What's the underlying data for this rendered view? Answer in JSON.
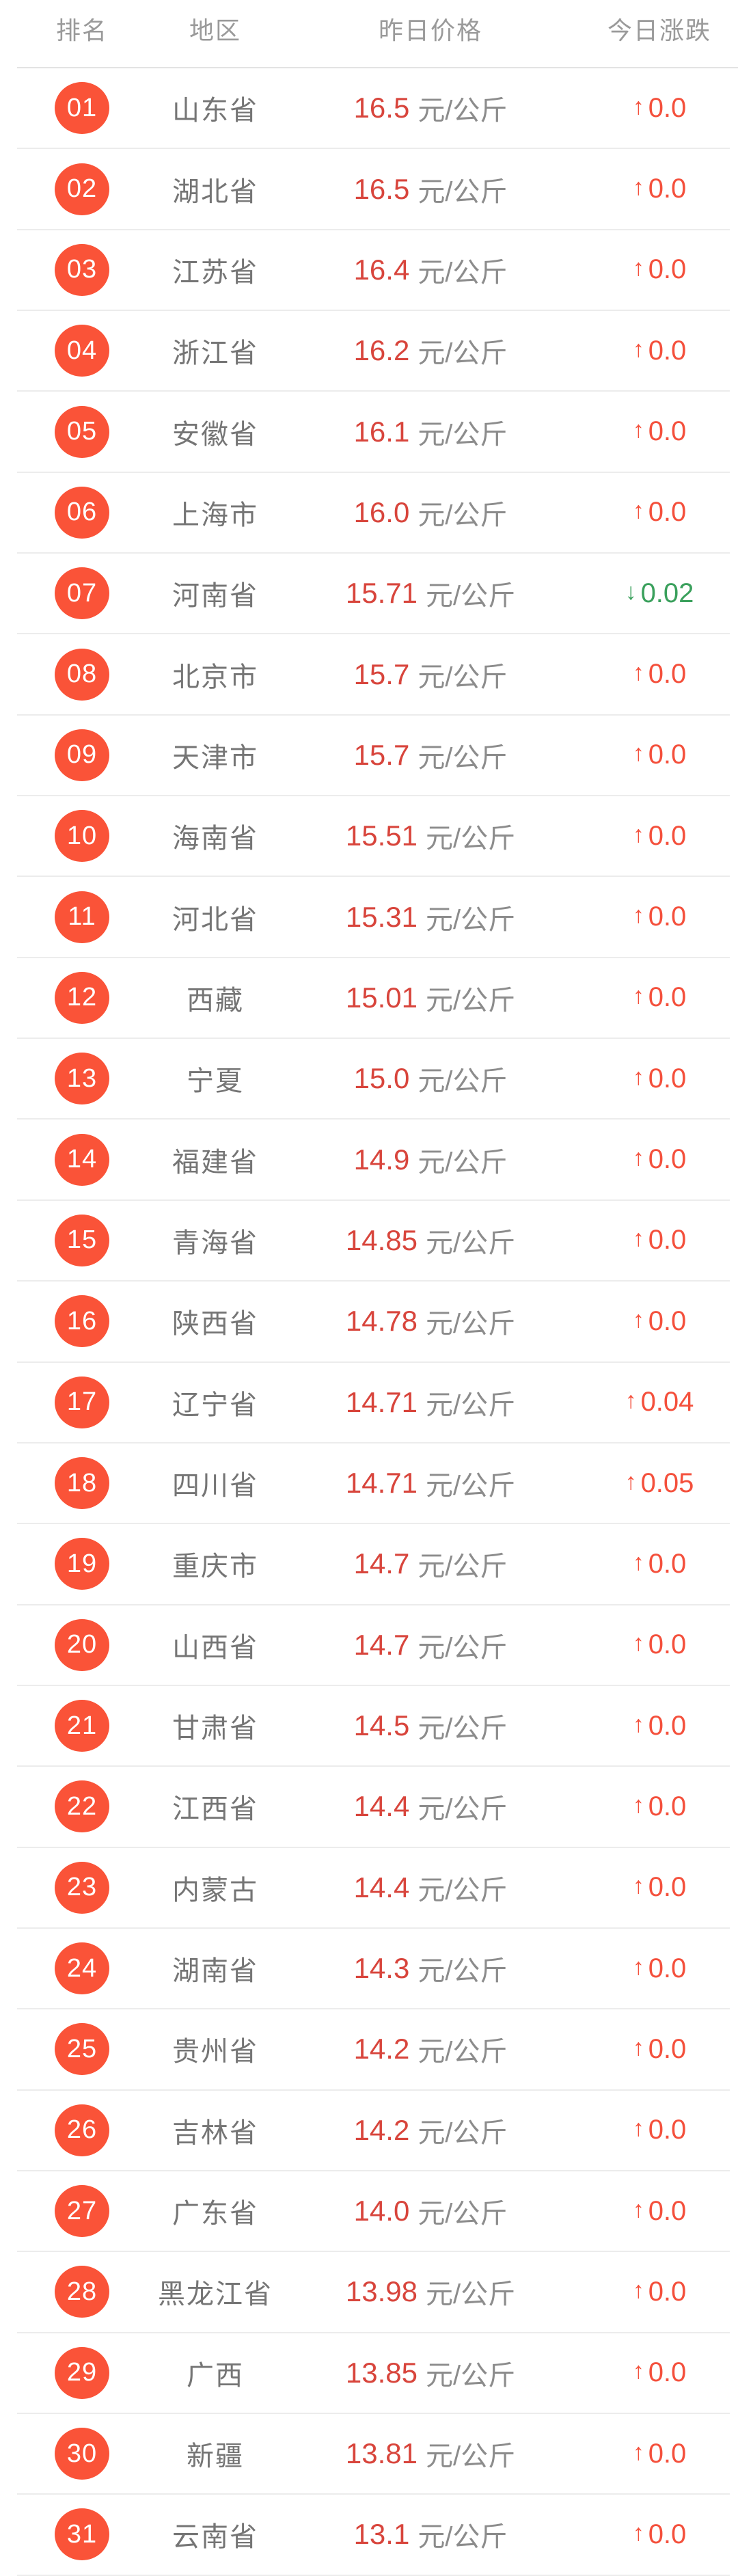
{
  "colors": {
    "badge_red": "#fa5338",
    "price_red": "#d8453c",
    "change_red": "#f4503c",
    "down_green": "#3aa05c",
    "region_gray": "#757575",
    "unit_gray": "#8c8c8c",
    "header_gray": "#9a9a9a",
    "divider": "#ececec",
    "bg": "#ffffff"
  },
  "arrows": {
    "up": "↑",
    "down": "↓"
  },
  "table": {
    "columns": {
      "rank": "排名",
      "region": "地区",
      "price": "昨日价格",
      "change": "今日涨跌"
    },
    "unit": "元/公斤",
    "rows": [
      {
        "rank": "01",
        "region": "山东省",
        "price": "16.5",
        "change": "0.0",
        "direction": "up"
      },
      {
        "rank": "02",
        "region": "湖北省",
        "price": "16.5",
        "change": "0.0",
        "direction": "up"
      },
      {
        "rank": "03",
        "region": "江苏省",
        "price": "16.4",
        "change": "0.0",
        "direction": "up"
      },
      {
        "rank": "04",
        "region": "浙江省",
        "price": "16.2",
        "change": "0.0",
        "direction": "up"
      },
      {
        "rank": "05",
        "region": "安徽省",
        "price": "16.1",
        "change": "0.0",
        "direction": "up"
      },
      {
        "rank": "06",
        "region": "上海市",
        "price": "16.0",
        "change": "0.0",
        "direction": "up"
      },
      {
        "rank": "07",
        "region": "河南省",
        "price": "15.71",
        "change": "0.02",
        "direction": "down"
      },
      {
        "rank": "08",
        "region": "北京市",
        "price": "15.7",
        "change": "0.0",
        "direction": "up"
      },
      {
        "rank": "09",
        "region": "天津市",
        "price": "15.7",
        "change": "0.0",
        "direction": "up"
      },
      {
        "rank": "10",
        "region": "海南省",
        "price": "15.51",
        "change": "0.0",
        "direction": "up"
      },
      {
        "rank": "11",
        "region": "河北省",
        "price": "15.31",
        "change": "0.0",
        "direction": "up"
      },
      {
        "rank": "12",
        "region": "西藏",
        "price": "15.01",
        "change": "0.0",
        "direction": "up"
      },
      {
        "rank": "13",
        "region": "宁夏",
        "price": "15.0",
        "change": "0.0",
        "direction": "up"
      },
      {
        "rank": "14",
        "region": "福建省",
        "price": "14.9",
        "change": "0.0",
        "direction": "up"
      },
      {
        "rank": "15",
        "region": "青海省",
        "price": "14.85",
        "change": "0.0",
        "direction": "up"
      },
      {
        "rank": "16",
        "region": "陕西省",
        "price": "14.78",
        "change": "0.0",
        "direction": "up"
      },
      {
        "rank": "17",
        "region": "辽宁省",
        "price": "14.71",
        "change": "0.04",
        "direction": "up"
      },
      {
        "rank": "18",
        "region": "四川省",
        "price": "14.71",
        "change": "0.05",
        "direction": "up"
      },
      {
        "rank": "19",
        "region": "重庆市",
        "price": "14.7",
        "change": "0.0",
        "direction": "up"
      },
      {
        "rank": "20",
        "region": "山西省",
        "price": "14.7",
        "change": "0.0",
        "direction": "up"
      },
      {
        "rank": "21",
        "region": "甘肃省",
        "price": "14.5",
        "change": "0.0",
        "direction": "up"
      },
      {
        "rank": "22",
        "region": "江西省",
        "price": "14.4",
        "change": "0.0",
        "direction": "up"
      },
      {
        "rank": "23",
        "region": "内蒙古",
        "price": "14.4",
        "change": "0.0",
        "direction": "up"
      },
      {
        "rank": "24",
        "region": "湖南省",
        "price": "14.3",
        "change": "0.0",
        "direction": "up"
      },
      {
        "rank": "25",
        "region": "贵州省",
        "price": "14.2",
        "change": "0.0",
        "direction": "up"
      },
      {
        "rank": "26",
        "region": "吉林省",
        "price": "14.2",
        "change": "0.0",
        "direction": "up"
      },
      {
        "rank": "27",
        "region": "广东省",
        "price": "14.0",
        "change": "0.0",
        "direction": "up"
      },
      {
        "rank": "28",
        "region": "黑龙江省",
        "price": "13.98",
        "change": "0.0",
        "direction": "up"
      },
      {
        "rank": "29",
        "region": "广西",
        "price": "13.85",
        "change": "0.0",
        "direction": "up"
      },
      {
        "rank": "30",
        "region": "新疆",
        "price": "13.81",
        "change": "0.0",
        "direction": "up"
      },
      {
        "rank": "31",
        "region": "云南省",
        "price": "13.1",
        "change": "0.0",
        "direction": "up"
      }
    ]
  }
}
